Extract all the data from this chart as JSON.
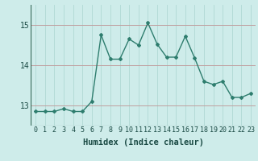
{
  "x": [
    0,
    1,
    2,
    3,
    4,
    5,
    6,
    7,
    8,
    9,
    10,
    11,
    12,
    13,
    14,
    15,
    16,
    17,
    18,
    19,
    20,
    21,
    22,
    23
  ],
  "y": [
    12.85,
    12.85,
    12.85,
    12.92,
    12.85,
    12.85,
    13.1,
    14.75,
    14.15,
    14.15,
    14.65,
    14.5,
    15.05,
    14.52,
    14.2,
    14.2,
    14.72,
    14.18,
    13.6,
    13.52,
    13.6,
    13.2,
    13.2,
    13.3
  ],
  "line_color": "#2e7d6e",
  "marker": "D",
  "marker_size": 2.0,
  "line_width": 1.0,
  "bg_color": "#ceecea",
  "vgrid_color": "#b0d8d4",
  "hgrid_color": "#c0a0a0",
  "xlabel": "Humidex (Indice chaleur)",
  "xlabel_fontsize": 7.5,
  "ytick_labels": [
    "13",
    "14",
    "15"
  ],
  "yticks": [
    13,
    14,
    15
  ],
  "ylim": [
    12.5,
    15.5
  ],
  "xlim": [
    -0.5,
    23.5
  ],
  "xticks": [
    0,
    1,
    2,
    3,
    4,
    5,
    6,
    7,
    8,
    9,
    10,
    11,
    12,
    13,
    14,
    15,
    16,
    17,
    18,
    19,
    20,
    21,
    22,
    23
  ],
  "tick_fontsize": 6.0
}
